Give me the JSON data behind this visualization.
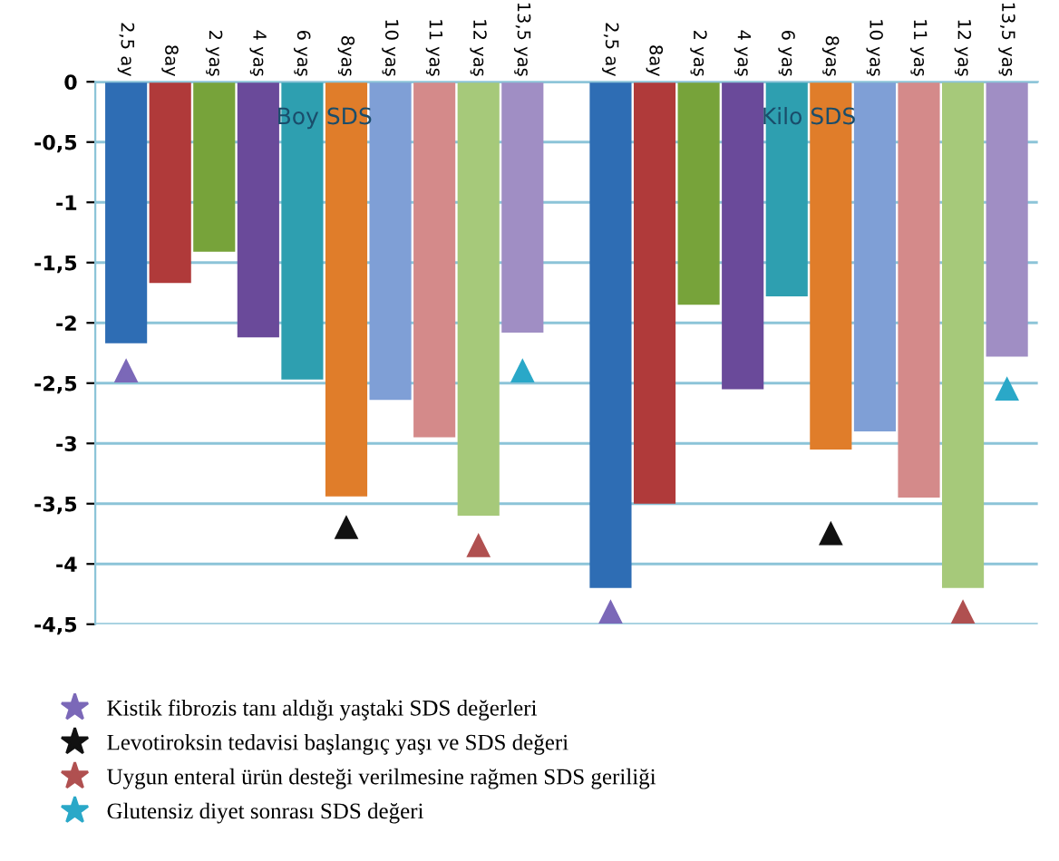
{
  "chart_data": {
    "type": "bar",
    "categories": [
      "2,5 ay",
      "8ay",
      "2 yaş",
      "4 yaş",
      "6 yaş",
      "8yaş",
      "10 yaş",
      "11 yaş",
      "12 yaş",
      "13,5 yaş",
      null,
      "2,5 ay",
      "8ay",
      "2 yaş",
      "4 yaş",
      "6 yaş",
      "8yaş",
      "10 yaş",
      "11 yaş",
      "12 yaş",
      "13,5 yaş"
    ],
    "values": [
      -2.17,
      -1.67,
      -1.41,
      -2.12,
      -2.47,
      -3.44,
      -2.64,
      -2.95,
      -3.6,
      -2.08,
      null,
      -4.2,
      -3.5,
      -1.85,
      -2.55,
      -1.78,
      -3.05,
      -2.9,
      -3.45,
      -4.2,
      -2.28
    ],
    "colors": [
      "#2e6db4",
      "#b03a3a",
      "#77a33a",
      "#6a4a9a",
      "#2e9fb0",
      "#e07d2a",
      "#7f9fd6",
      "#d48a8a",
      "#a6c97a",
      "#a08ec4",
      "#ffffff",
      "#2e6db4",
      "#b03a3a",
      "#77a33a",
      "#6a4a9a",
      "#2e9fb0",
      "#e07d2a",
      "#7f9fd6",
      "#d48a8a",
      "#a6c97a",
      "#a08ec4"
    ],
    "series": [
      {
        "type": "scatter",
        "name": "Kistik fibrozis tanı aldığı yaştaki SDS değerleri",
        "color": "#7b68b8",
        "values": [
          -2.4,
          null,
          null,
          null,
          null,
          null,
          null,
          null,
          null,
          null,
          null,
          -4.4,
          null,
          null,
          null,
          null,
          null,
          null,
          null,
          null,
          null
        ]
      },
      {
        "type": "scatter",
        "name": "Levotiroksin tedavisi başlangıç yaşı ve SDS değeri",
        "color": "#111111",
        "values": [
          null,
          null,
          null,
          null,
          null,
          -3.7,
          null,
          null,
          null,
          null,
          null,
          null,
          null,
          null,
          null,
          null,
          -3.75,
          null,
          null,
          null,
          null
        ]
      },
      {
        "type": "scatter",
        "name": "Uygun enteral ürün desteği verilmesine rağmen SDS geriliği",
        "color": "#b05050",
        "values": [
          null,
          null,
          null,
          null,
          null,
          null,
          null,
          null,
          -3.85,
          null,
          null,
          null,
          null,
          null,
          null,
          null,
          null,
          null,
          null,
          -4.4,
          null
        ]
      },
      {
        "type": "scatter",
        "name": "Glutensiz diyet sonrası SDS değeri",
        "color": "#2aa8c8",
        "values": [
          null,
          null,
          null,
          null,
          null,
          null,
          null,
          null,
          null,
          -2.4,
          null,
          null,
          null,
          null,
          null,
          null,
          null,
          null,
          null,
          null,
          -2.55
        ]
      }
    ],
    "annotations": [
      "Boy SDS",
      "Kilo SDS"
    ],
    "ylim": [
      -4.5,
      0
    ],
    "yticks": [
      0,
      {
        "value": -0.5,
        "label": "-0,5"
      },
      -1,
      {
        "value": -1.5,
        "label": "-1,5"
      },
      -2,
      {
        "value": -2.5,
        "label": "-2,5"
      },
      -3,
      {
        "value": -3.5,
        "label": "-3,5"
      },
      -4,
      {
        "value": -4.5,
        "label": "-4,5"
      }
    ],
    "grid": "y",
    "legend": "bottom left",
    "marker": "triangle"
  }
}
